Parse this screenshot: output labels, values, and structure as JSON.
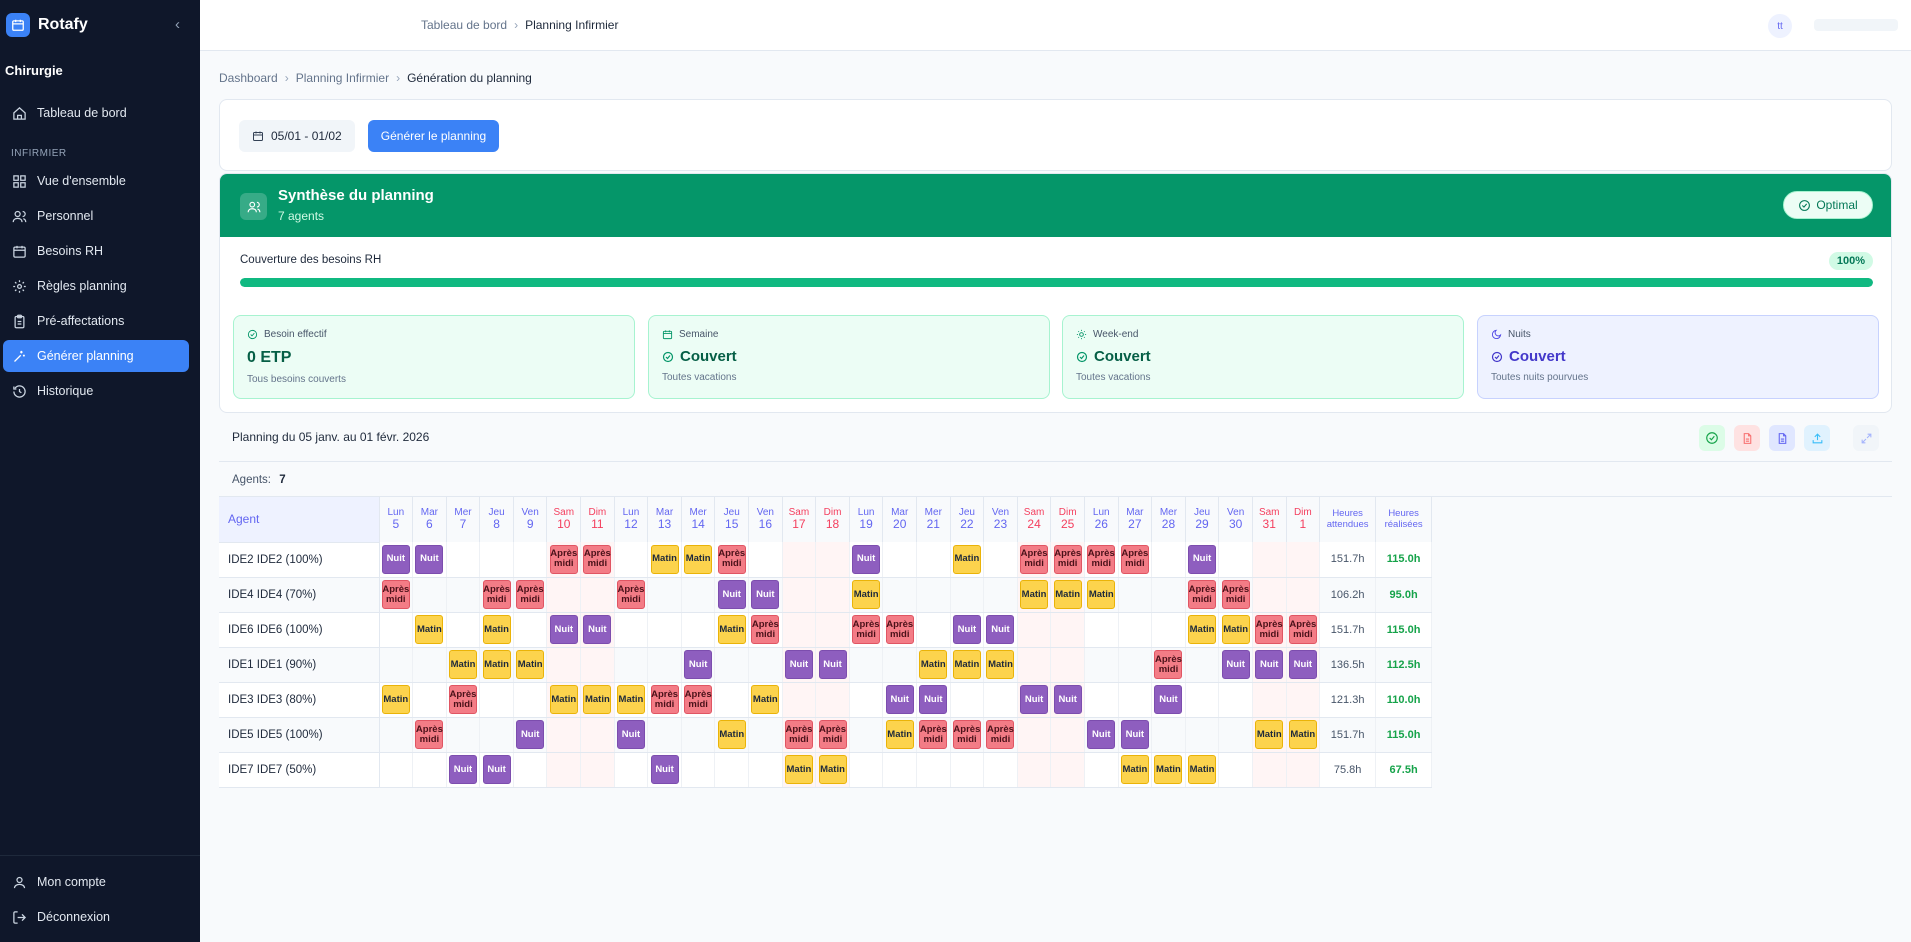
{
  "sidebar": {
    "brand": "Rotafy",
    "ward": "Chirurgie",
    "dashboard": "Tableau de bord",
    "section": "INFIRMIER",
    "items": [
      {
        "label": "Vue d'ensemble",
        "icon": "grid-icon"
      },
      {
        "label": "Personnel",
        "icon": "users-icon"
      },
      {
        "label": "Besoins RH",
        "icon": "calendar-icon"
      },
      {
        "label": "Règles planning",
        "icon": "gear-icon"
      },
      {
        "label": "Pré-affectations",
        "icon": "clipboard-icon"
      },
      {
        "label": "Générer planning",
        "icon": "sparkle-icon"
      },
      {
        "label": "Historique",
        "icon": "history-icon"
      }
    ],
    "account": "Mon compte",
    "logout": "Déconnexion"
  },
  "topbar": {
    "crumb1": "Tableau de bord",
    "crumb2": "Planning Infirmier",
    "avatar": "tt"
  },
  "breadcrumb": {
    "b1": "Dashboard",
    "b2": "Planning Infirmier",
    "b3": "Génération du planning"
  },
  "controls": {
    "date_range": "05/01 - 01/02",
    "generate": "Générer le planning"
  },
  "summary": {
    "title": "Synthèse du planning",
    "subtitle": "7 agents",
    "badge": "Optimal",
    "coverage_label": "Couverture des besoins RH",
    "coverage_value": "100%",
    "coverage_fraction": 1.0
  },
  "stats": [
    {
      "title": "Besoin effectif",
      "value": "0 ETP",
      "sub": "Tous besoins couverts"
    },
    {
      "title": "Semaine",
      "value": "Couvert",
      "sub": "Toutes vacations"
    },
    {
      "title": "Week-end",
      "value": "Couvert",
      "sub": "Toutes vacations"
    },
    {
      "title": "Nuits",
      "value": "Couvert",
      "sub": "Toutes nuits pourvues"
    }
  ],
  "planning": {
    "title": "Planning du 05 janv. au 01 févr. 2026",
    "agents_label": "Agents:",
    "agents_count": "7",
    "agent_header": "Agent",
    "hours_expected": "Heures attendues",
    "hours_done": "Heures réalisées",
    "shift_labels": {
      "N": "Nuit",
      "M": "Matin",
      "A": "Après midi"
    },
    "days": [
      {
        "n": "Lun",
        "d": "5"
      },
      {
        "n": "Mar",
        "d": "6"
      },
      {
        "n": "Mer",
        "d": "7"
      },
      {
        "n": "Jeu",
        "d": "8"
      },
      {
        "n": "Ven",
        "d": "9"
      },
      {
        "n": "Sam",
        "d": "10",
        "we": true
      },
      {
        "n": "Dim",
        "d": "11",
        "we": true
      },
      {
        "n": "Lun",
        "d": "12"
      },
      {
        "n": "Mar",
        "d": "13"
      },
      {
        "n": "Mer",
        "d": "14"
      },
      {
        "n": "Jeu",
        "d": "15"
      },
      {
        "n": "Ven",
        "d": "16"
      },
      {
        "n": "Sam",
        "d": "17",
        "we": true
      },
      {
        "n": "Dim",
        "d": "18",
        "we": true
      },
      {
        "n": "Lun",
        "d": "19"
      },
      {
        "n": "Mar",
        "d": "20"
      },
      {
        "n": "Mer",
        "d": "21"
      },
      {
        "n": "Jeu",
        "d": "22"
      },
      {
        "n": "Ven",
        "d": "23"
      },
      {
        "n": "Sam",
        "d": "24",
        "we": true
      },
      {
        "n": "Dim",
        "d": "25",
        "we": true
      },
      {
        "n": "Lun",
        "d": "26"
      },
      {
        "n": "Mar",
        "d": "27"
      },
      {
        "n": "Mer",
        "d": "28"
      },
      {
        "n": "Jeu",
        "d": "29"
      },
      {
        "n": "Ven",
        "d": "30"
      },
      {
        "n": "Sam",
        "d": "31",
        "we": true
      },
      {
        "n": "Dim",
        "d": "1",
        "we": true
      }
    ],
    "rows": [
      {
        "name": "IDE2 IDE2 (100%)",
        "expected": "151.7h",
        "done": "115.0h",
        "shifts": [
          "N",
          "N",
          "",
          "",
          "",
          "A",
          "A",
          "",
          "M",
          "M",
          "A",
          "",
          "",
          "",
          "N",
          "",
          "",
          "M",
          "",
          "A",
          "A",
          "A",
          "A",
          "",
          "N",
          "",
          "",
          ""
        ]
      },
      {
        "name": "IDE4 IDE4 (70%)",
        "expected": "106.2h",
        "done": "95.0h",
        "shifts": [
          "A",
          "",
          "",
          "A",
          "A",
          "",
          "",
          "A",
          "",
          "",
          "N",
          "N",
          "",
          "",
          "M",
          "",
          "",
          "",
          "",
          "M",
          "M",
          "M",
          "",
          "",
          "A",
          "A",
          "",
          ""
        ]
      },
      {
        "name": "IDE6 IDE6 (100%)",
        "expected": "151.7h",
        "done": "115.0h",
        "shifts": [
          "",
          "M",
          "",
          "M",
          "",
          "N",
          "N",
          "",
          "",
          "",
          "M",
          "A",
          "",
          "",
          "A",
          "A",
          "",
          "N",
          "N",
          "",
          "",
          "",
          "",
          "",
          "M",
          "M",
          "A",
          "A"
        ]
      },
      {
        "name": "IDE1 IDE1 (90%)",
        "expected": "136.5h",
        "done": "112.5h",
        "shifts": [
          "",
          "",
          "M",
          "M",
          "M",
          "",
          "",
          "",
          "",
          "N",
          "",
          "",
          "N",
          "N",
          "",
          "",
          "M",
          "M",
          "M",
          "",
          "",
          "",
          "",
          "A",
          "",
          "N",
          "N",
          "N"
        ]
      },
      {
        "name": "IDE3 IDE3 (80%)",
        "expected": "121.3h",
        "done": "110.0h",
        "shifts": [
          "M",
          "",
          "A",
          "",
          "",
          "M",
          "M",
          "M",
          "A",
          "A",
          "",
          "M",
          "",
          "",
          "",
          "N",
          "N",
          "",
          "",
          "N",
          "N",
          "",
          "",
          "N",
          "",
          "",
          "",
          ""
        ]
      },
      {
        "name": "IDE5 IDE5 (100%)",
        "expected": "151.7h",
        "done": "115.0h",
        "shifts": [
          "",
          "A",
          "",
          "",
          "N",
          "",
          "",
          "N",
          "",
          "",
          "M",
          "",
          "A",
          "A",
          "",
          "M",
          "A",
          "A",
          "A",
          "",
          "",
          "N",
          "N",
          "",
          "",
          "",
          "M",
          "M"
        ]
      },
      {
        "name": "IDE7 IDE7 (50%)",
        "expected": "75.8h",
        "done": "67.5h",
        "shifts": [
          "",
          "",
          "N",
          "N",
          "",
          "",
          "",
          "",
          "N",
          "",
          "",
          "",
          "M",
          "M",
          "",
          "",
          "",
          "",
          "",
          "",
          "",
          "",
          "M",
          "M",
          "M",
          "",
          "",
          ""
        ]
      }
    ]
  }
}
